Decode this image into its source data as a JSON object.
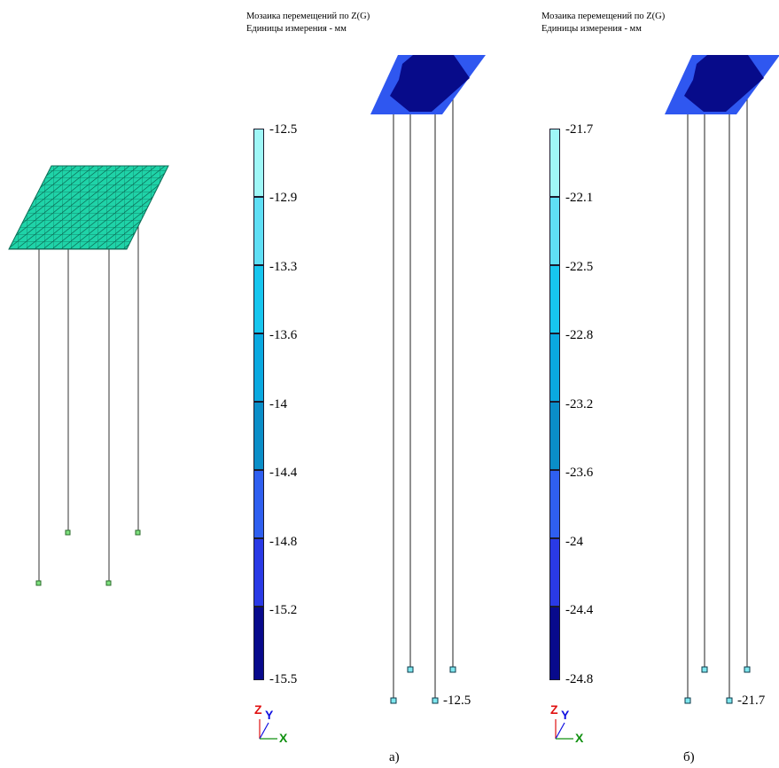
{
  "panels": [
    {
      "id": "a",
      "caption_line1": "Мозаика перемещений по Z(G)",
      "caption_line2": "Единицы измерения - мм",
      "legend_values": [
        "-12.5",
        "-12.9",
        "-13.3",
        "-13.6",
        "-14",
        "-14.4",
        "-14.8",
        "-15.2",
        "-15.5"
      ],
      "end_value": "-12.5",
      "sublabel": "а)"
    },
    {
      "id": "b",
      "caption_line1": "Мозаика перемещений по Z(G)",
      "caption_line2": "Единицы измерения - мм",
      "legend_values": [
        "-21.7",
        "-22.1",
        "-22.5",
        "-22.8",
        "-23.2",
        "-23.6",
        "-24",
        "-24.4",
        "-24.8"
      ],
      "end_value": "-21.7",
      "sublabel": "б)"
    }
  ],
  "legend_colors": [
    "#9ff7f7",
    "#5fdff5",
    "#17c6ef",
    "#0aa9e0",
    "#0a8ec8",
    "#2f5ff0",
    "#2a3ae6",
    "#080a8c"
  ],
  "mesh_colors": {
    "light": "#2f57f0",
    "dark": "#070b8a",
    "plate_model": "#1fd3a8"
  },
  "axes": {
    "z": "Z",
    "y": "Y",
    "x": "X",
    "z_color": "#e01010",
    "y_color": "#1010e0",
    "x_color": "#109010"
  }
}
